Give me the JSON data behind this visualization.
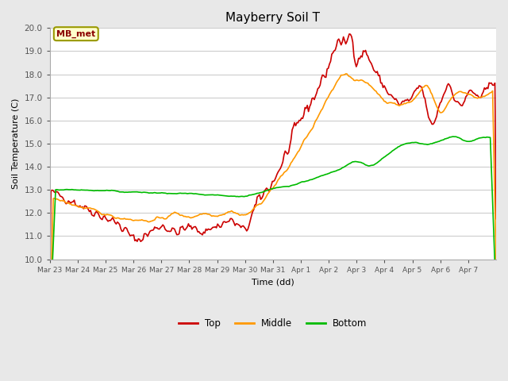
{
  "title": "Mayberry Soil T",
  "xlabel": "Time (dd)",
  "ylabel": "Soil Temperature (C)",
  "ylim": [
    10.0,
    20.0
  ],
  "yticks": [
    10.0,
    11.0,
    12.0,
    13.0,
    14.0,
    15.0,
    16.0,
    17.0,
    18.0,
    19.0,
    20.0
  ],
  "plot_bg_color": "#ffffff",
  "fig_bg_color": "#e8e8e8",
  "annotation_text": "MB_met",
  "annotation_bbox_facecolor": "#ffffcc",
  "annotation_bbox_edgecolor": "#999900",
  "line_colors": {
    "top": "#cc0000",
    "middle": "#ff9900",
    "bottom": "#00bb00"
  },
  "line_width": 1.2,
  "xtick_labels": [
    "Mar 23",
    "Mar 24",
    "Mar 25",
    "Mar 26",
    "Mar 27",
    "Mar 28",
    "Mar 29",
    "Mar 30",
    "Mar 31",
    "Apr 1",
    "Apr 2",
    "Apr 3",
    "Apr 4",
    "Apr 5",
    "Apr 6",
    "Apr 7"
  ],
  "n_points": 384
}
